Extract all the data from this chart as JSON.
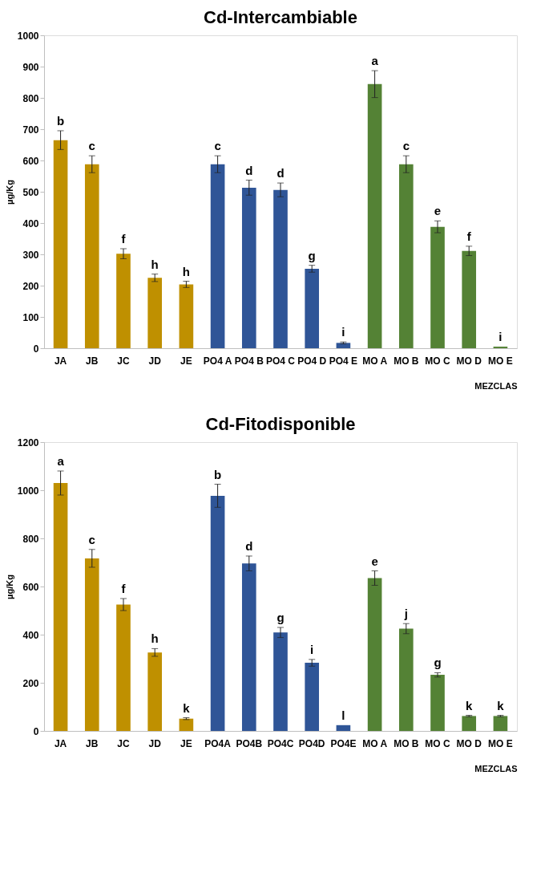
{
  "chart_data": [
    {
      "type": "bar",
      "title": "Cd-Intercambiable",
      "xlabel": "MEZCLAS",
      "ylabel": "µg/Kg",
      "categories": [
        "JA",
        "JB",
        "JC",
        "JD",
        "JE",
        "PO4 A",
        "PO4 B",
        "PO4 C",
        "PO4 D",
        "PO4 E",
        "MO A",
        "MO B",
        "MO C",
        "MO D",
        "MO E"
      ],
      "values": [
        665,
        588,
        302,
        225,
        204,
        588,
        513,
        506,
        254,
        17,
        844,
        588,
        388,
        311,
        5
      ],
      "errors": [
        30,
        27,
        16,
        12,
        10,
        27,
        24,
        22,
        11,
        3,
        43,
        27,
        19,
        15,
        null
      ],
      "value_labels": [
        "b",
        "c",
        "f",
        "h",
        "h",
        "c",
        "d",
        "d",
        "g",
        "i",
        "a",
        "c",
        "e",
        "f",
        "i"
      ],
      "colors": [
        "#bf9000",
        "#bf9000",
        "#bf9000",
        "#bf9000",
        "#bf9000",
        "#2f5597",
        "#2f5597",
        "#2f5597",
        "#2f5597",
        "#2f5597",
        "#548235",
        "#548235",
        "#548235",
        "#548235",
        "#548235"
      ],
      "ylim": [
        0,
        1000
      ],
      "yticks": [
        0,
        100,
        200,
        300,
        400,
        500,
        600,
        700,
        800,
        900,
        1000
      ],
      "grid": false
    },
    {
      "type": "bar",
      "title": "Cd-Fitodisponible",
      "xlabel": "MEZCLAS",
      "ylabel": "µg/Kg",
      "categories": [
        "JA",
        "JB",
        "JC",
        "JD",
        "JE",
        "PO4A",
        "PO4B",
        "PO4C",
        "PO4D",
        "PO4E",
        "MO A",
        "MO B",
        "MO C",
        "MO D",
        "MO E"
      ],
      "values": [
        1030,
        717,
        525,
        326,
        51,
        977,
        696,
        409,
        283,
        24,
        635,
        425,
        233,
        62,
        62
      ],
      "errors": [
        50,
        37,
        25,
        16,
        4,
        48,
        31,
        21,
        14,
        null,
        30,
        21,
        9,
        3,
        3
      ],
      "value_labels": [
        "a",
        "c",
        "f",
        "h",
        "k",
        "b",
        "d",
        "g",
        "i",
        "l",
        "e",
        "j",
        "g",
        "k",
        "k"
      ],
      "colors": [
        "#bf9000",
        "#bf9000",
        "#bf9000",
        "#bf9000",
        "#bf9000",
        "#2f5597",
        "#2f5597",
        "#2f5597",
        "#2f5597",
        "#2f5597",
        "#548235",
        "#548235",
        "#548235",
        "#548235",
        "#548235"
      ],
      "ylim": [
        0,
        1200
      ],
      "yticks": [
        0,
        200,
        400,
        600,
        800,
        1000,
        1200
      ],
      "grid": false
    }
  ]
}
